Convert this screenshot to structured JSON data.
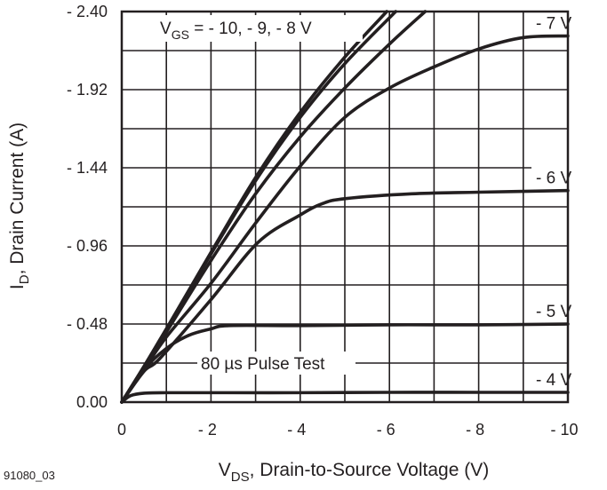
{
  "figure_id": "91080_03",
  "chart_data": {
    "type": "line",
    "title": "",
    "xlabel": {
      "main": "V",
      "sub": "DS",
      "rest": ", Drain-to-Source Voltage (V)"
    },
    "ylabel": {
      "main": "I",
      "sub": "D",
      "rest": ", Drain Current (A)"
    },
    "xlim": [
      0,
      -10
    ],
    "ylim": [
      0,
      -2.4
    ],
    "grid": true,
    "x_ticks": [
      0,
      -1,
      -2,
      -3,
      -4,
      -5,
      -6,
      -7,
      -8,
      -9,
      -10
    ],
    "x_tick_labels": [
      "0",
      "- 2",
      "- 4",
      "- 6",
      "- 8",
      "- 10"
    ],
    "x_tick_label_values": [
      0,
      -2,
      -4,
      -6,
      -8,
      -10
    ],
    "y_ticks": [
      0,
      -0.24,
      -0.48,
      -0.72,
      -0.96,
      -1.2,
      -1.44,
      -1.68,
      -1.92,
      -2.16,
      -2.4
    ],
    "y_tick_labels": [
      "0.00",
      "- 0.48",
      "- 0.96",
      "- 1.44",
      "- 1.92",
      "- 2.40"
    ],
    "y_tick_label_values": [
      0,
      -0.48,
      -0.96,
      -1.44,
      -1.92,
      -2.4
    ],
    "annotations": {
      "vgs_main": {
        "main": "V",
        "sub": "GS",
        "rest": " = - 10, - 9, - 8 V"
      },
      "pulse": "80 µs Pulse Test"
    },
    "series": [
      {
        "name": "- 10 V",
        "x": [
          0,
          -0.5,
          -1,
          -2,
          -3,
          -4,
          -5,
          -5.94
        ],
        "y": [
          0,
          -0.22,
          -0.45,
          -0.92,
          -1.38,
          -1.78,
          -2.12,
          -2.4
        ]
      },
      {
        "name": "- 9 V",
        "x": [
          0,
          -0.5,
          -1,
          -2,
          -3,
          -4,
          -5,
          -6.14
        ],
        "y": [
          0,
          -0.22,
          -0.45,
          -0.91,
          -1.36,
          -1.75,
          -2.08,
          -2.4
        ]
      },
      {
        "name": "- 8 V",
        "x": [
          0,
          -0.5,
          -1,
          -2,
          -3,
          -4,
          -5,
          -6,
          -6.8
        ],
        "y": [
          0,
          -0.21,
          -0.43,
          -0.87,
          -1.28,
          -1.63,
          -1.93,
          -2.2,
          -2.4
        ]
      },
      {
        "name": "- 7 V",
        "x": [
          0,
          -0.5,
          -1,
          -2,
          -3,
          -4,
          -5,
          -6,
          -7,
          -8,
          -9,
          -10
        ],
        "y": [
          0,
          -0.2,
          -0.4,
          -0.73,
          -1.1,
          -1.45,
          -1.75,
          -1.93,
          -2.06,
          -2.17,
          -2.24,
          -2.25
        ]
      },
      {
        "name": "- 6 V",
        "x": [
          0,
          -0.5,
          -0.86,
          -2,
          -3.05,
          -4,
          -4.5,
          -5,
          -6.5,
          -8,
          -10
        ],
        "y": [
          0,
          -0.19,
          -0.27,
          -0.63,
          -0.98,
          -1.15,
          -1.22,
          -1.25,
          -1.28,
          -1.29,
          -1.3
        ]
      },
      {
        "name": "- 5 V",
        "x": [
          0,
          -0.5,
          -1,
          -1.5,
          -2,
          -2.4,
          -4,
          -6,
          -8,
          -10
        ],
        "y": [
          0,
          -0.2,
          -0.33,
          -0.41,
          -0.45,
          -0.47,
          -0.47,
          -0.475,
          -0.475,
          -0.48
        ]
      },
      {
        "name": "- 4 V",
        "x": [
          0,
          -0.2,
          -0.5,
          -1,
          -2,
          -4,
          -6,
          -8,
          -10
        ],
        "y": [
          0,
          -0.04,
          -0.055,
          -0.058,
          -0.058,
          -0.058,
          -0.06,
          -0.06,
          -0.06
        ]
      }
    ]
  }
}
